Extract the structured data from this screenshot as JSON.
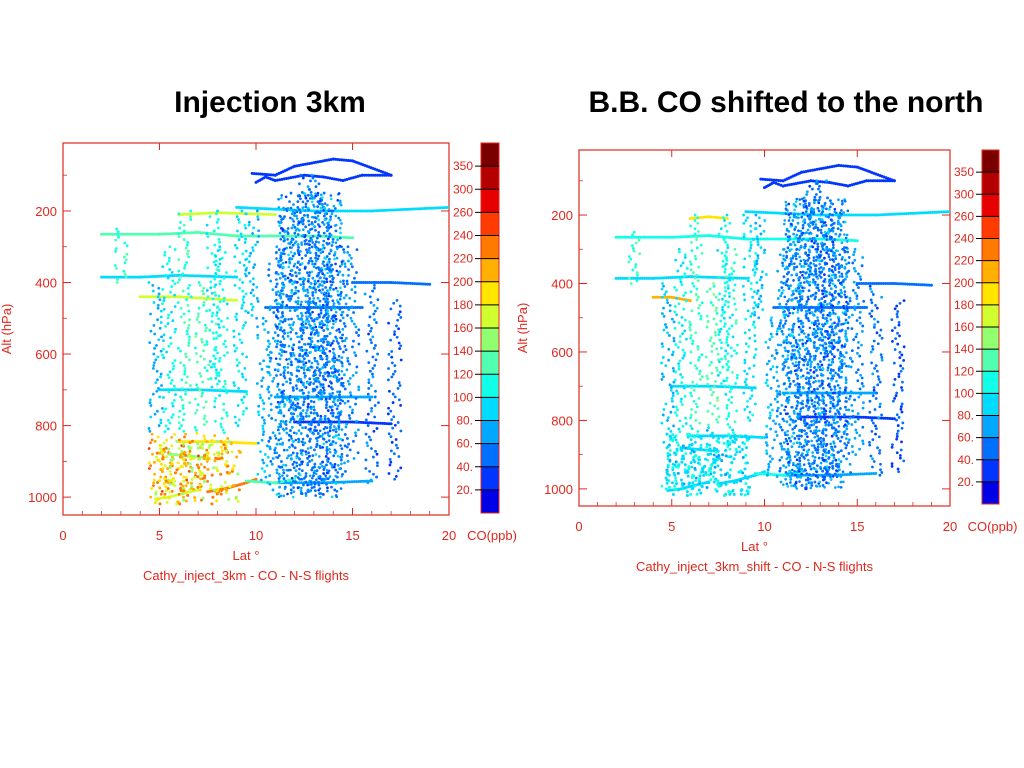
{
  "panels": {
    "left": {
      "title": "Injection 3km"
    },
    "right": {
      "title": "B.B. CO shifted to the north"
    }
  },
  "colors": {
    "axis": "#e0281e",
    "colormap": [
      "#0000e6",
      "#0036ff",
      "#0070ff",
      "#00a8ff",
      "#00dcff",
      "#10ffe8",
      "#50ffb0",
      "#90ff70",
      "#d0ff30",
      "#ffe600",
      "#ffb000",
      "#ff7a00",
      "#ff3c00",
      "#e60000",
      "#b40000",
      "#7a0000"
    ]
  },
  "chart_data": [
    {
      "type": "scatter",
      "title": "Injection 3km",
      "xlabel": "Lat °",
      "ylabel": "Alt (hPa)",
      "caption": "Cathy_inject_3km - CO   -   N-S flights",
      "xlim": [
        0,
        20
      ],
      "ylim": [
        1050,
        10
      ],
      "y_inverted": true,
      "xticks": [
        "0",
        "5",
        "10",
        "15",
        "20"
      ],
      "yticks": [
        "200",
        "400",
        "600",
        "800",
        "1000"
      ],
      "colorbar": {
        "label": "CO(ppb)",
        "ticks": [
          "20.",
          "40.",
          "60.",
          "80.",
          "100",
          "120",
          "140",
          "160",
          "180",
          "200",
          "220",
          "240",
          "260",
          "300",
          "350"
        ]
      },
      "tracks": [
        {
          "co": 25,
          "points": [
            [
              9.8,
              95
            ],
            [
              11,
              100
            ],
            [
              12,
              75
            ],
            [
              14,
              55
            ],
            [
              15,
              60
            ],
            [
              17,
              100
            ],
            [
              15.5,
              100
            ],
            [
              14.5,
              115
            ],
            [
              13.5,
              105
            ],
            [
              12.5,
              100
            ],
            [
              11,
              115
            ],
            [
              10.5,
              105
            ],
            [
              10,
              120
            ]
          ]
        },
        {
          "co": 95,
          "points": [
            [
              9,
              190
            ],
            [
              11,
              195
            ],
            [
              13,
              200
            ],
            [
              16,
              200
            ],
            [
              20,
              190
            ]
          ]
        },
        {
          "co": 200,
          "points": [
            [
              6,
              210
            ],
            [
              8,
              205
            ],
            [
              11,
              210
            ]
          ]
        },
        {
          "co": 150,
          "points": [
            [
              2,
              265
            ],
            [
              5,
              265
            ],
            [
              7,
              260
            ],
            [
              9,
              270
            ],
            [
              13,
              270
            ],
            [
              15,
              275
            ]
          ]
        },
        {
          "co": 60,
          "points": [
            [
              15,
              400
            ],
            [
              17,
              400
            ],
            [
              19,
              405
            ]
          ]
        },
        {
          "co": 110,
          "points": [
            [
              2,
              385
            ],
            [
              4,
              385
            ],
            [
              6,
              380
            ],
            [
              9,
              385
            ]
          ]
        },
        {
          "co": 190,
          "points": [
            [
              4,
              440
            ],
            [
              6,
              440
            ],
            [
              9,
              450
            ]
          ]
        },
        {
          "co": 60,
          "points": [
            [
              10.5,
              470
            ],
            [
              14,
              470
            ],
            [
              15.5,
              470
            ]
          ]
        },
        {
          "co": 95,
          "points": [
            [
              5,
              700
            ],
            [
              7,
              700
            ],
            [
              9.5,
              705
            ]
          ]
        },
        {
          "co": 80,
          "points": [
            [
              11,
              720
            ],
            [
              13,
              720
            ],
            [
              16,
              720
            ]
          ]
        },
        {
          "co": 40,
          "points": [
            [
              12,
              790
            ],
            [
              15,
              790
            ],
            [
              17,
              795
            ]
          ]
        },
        {
          "co": 230,
          "points": [
            [
              6,
              845
            ],
            [
              8,
              845
            ],
            [
              10,
              850
            ]
          ]
        },
        {
          "co": 270,
          "points": [
            [
              7.5,
              985
            ],
            [
              8.5,
              975
            ],
            [
              9.5,
              960
            ],
            [
              10,
              950
            ]
          ]
        },
        {
          "co": 80,
          "points": [
            [
              11,
              960
            ],
            [
              13.5,
              960
            ],
            [
              16,
              955
            ]
          ]
        },
        {
          "co": 210,
          "points": [
            [
              4.8,
              1005
            ],
            [
              5.5,
              1000
            ],
            [
              6.2,
              990
            ],
            [
              7,
              980
            ]
          ]
        },
        {
          "co": 160,
          "points": [
            [
              9.5,
              955
            ],
            [
              11,
              960
            ],
            [
              12,
              950
            ]
          ]
        },
        {
          "co": 180,
          "points": [
            [
              5.5,
              880
            ],
            [
              6.5,
              885
            ],
            [
              7.5,
              890
            ]
          ]
        }
      ]
    },
    {
      "type": "scatter",
      "title": "B.B. CO shifted to the north",
      "xlabel": "Lat °",
      "ylabel": "Alt (hPa)",
      "caption": "Cathy_inject_3km_shift - CO   -   N-S flights",
      "xlim": [
        0,
        20
      ],
      "ylim": [
        1050,
        10
      ],
      "y_inverted": true,
      "xticks": [
        "0",
        "5",
        "10",
        "15",
        "20"
      ],
      "yticks": [
        "200",
        "400",
        "600",
        "800",
        "1000"
      ],
      "colorbar": {
        "label": "CO(ppb)",
        "ticks": [
          "20.",
          "40.",
          "60.",
          "80.",
          "100",
          "120",
          "140",
          "160",
          "180",
          "200",
          "220",
          "240",
          "260",
          "300",
          "350"
        ]
      },
      "tracks": [
        {
          "co": 25,
          "points": [
            [
              9.8,
              95
            ],
            [
              11,
              100
            ],
            [
              12,
              75
            ],
            [
              14,
              55
            ],
            [
              15,
              60
            ],
            [
              17,
              100
            ],
            [
              15.5,
              100
            ],
            [
              14.5,
              115
            ],
            [
              13.5,
              105
            ],
            [
              12.5,
              100
            ],
            [
              11,
              115
            ],
            [
              10.5,
              105
            ],
            [
              10,
              120
            ]
          ]
        },
        {
          "co": 95,
          "points": [
            [
              9,
              190
            ],
            [
              11,
              195
            ],
            [
              13,
              200
            ],
            [
              16,
              200
            ],
            [
              20,
              190
            ]
          ]
        },
        {
          "co": 230,
          "points": [
            [
              6,
              210
            ],
            [
              7,
              205
            ],
            [
              8,
              210
            ]
          ]
        },
        {
          "co": 120,
          "points": [
            [
              2,
              265
            ],
            [
              5,
              265
            ],
            [
              7,
              260
            ],
            [
              9,
              270
            ],
            [
              13,
              270
            ],
            [
              15,
              275
            ]
          ]
        },
        {
          "co": 60,
          "points": [
            [
              15,
              400
            ],
            [
              17,
              400
            ],
            [
              19,
              405
            ]
          ]
        },
        {
          "co": 100,
          "points": [
            [
              2,
              385
            ],
            [
              4,
              385
            ],
            [
              6,
              380
            ],
            [
              9,
              385
            ]
          ]
        },
        {
          "co": 240,
          "points": [
            [
              4,
              440
            ],
            [
              5,
              440
            ],
            [
              6,
              450
            ]
          ]
        },
        {
          "co": 60,
          "points": [
            [
              10.5,
              470
            ],
            [
              14,
              470
            ],
            [
              15.5,
              470
            ]
          ]
        },
        {
          "co": 95,
          "points": [
            [
              5,
              700
            ],
            [
              7,
              700
            ],
            [
              9.5,
              705
            ]
          ]
        },
        {
          "co": 80,
          "points": [
            [
              11,
              720
            ],
            [
              13,
              720
            ],
            [
              16,
              720
            ]
          ]
        },
        {
          "co": 40,
          "points": [
            [
              12,
              790
            ],
            [
              15,
              790
            ],
            [
              17,
              795
            ]
          ]
        },
        {
          "co": 100,
          "points": [
            [
              6,
              845
            ],
            [
              8,
              845
            ],
            [
              10,
              850
            ]
          ]
        },
        {
          "co": 110,
          "points": [
            [
              7.5,
              985
            ],
            [
              8.5,
              975
            ],
            [
              9.5,
              960
            ],
            [
              10,
              950
            ]
          ]
        },
        {
          "co": 80,
          "points": [
            [
              11,
              960
            ],
            [
              13.5,
              960
            ],
            [
              16,
              955
            ]
          ]
        },
        {
          "co": 100,
          "points": [
            [
              4.8,
              1005
            ],
            [
              5.5,
              1000
            ],
            [
              6.2,
              990
            ],
            [
              7,
              980
            ]
          ]
        },
        {
          "co": 130,
          "points": [
            [
              9.5,
              955
            ],
            [
              11,
              960
            ],
            [
              12,
              950
            ]
          ]
        },
        {
          "co": 105,
          "points": [
            [
              5.5,
              880
            ],
            [
              6.5,
              885
            ],
            [
              7.5,
              890
            ]
          ]
        }
      ]
    }
  ]
}
